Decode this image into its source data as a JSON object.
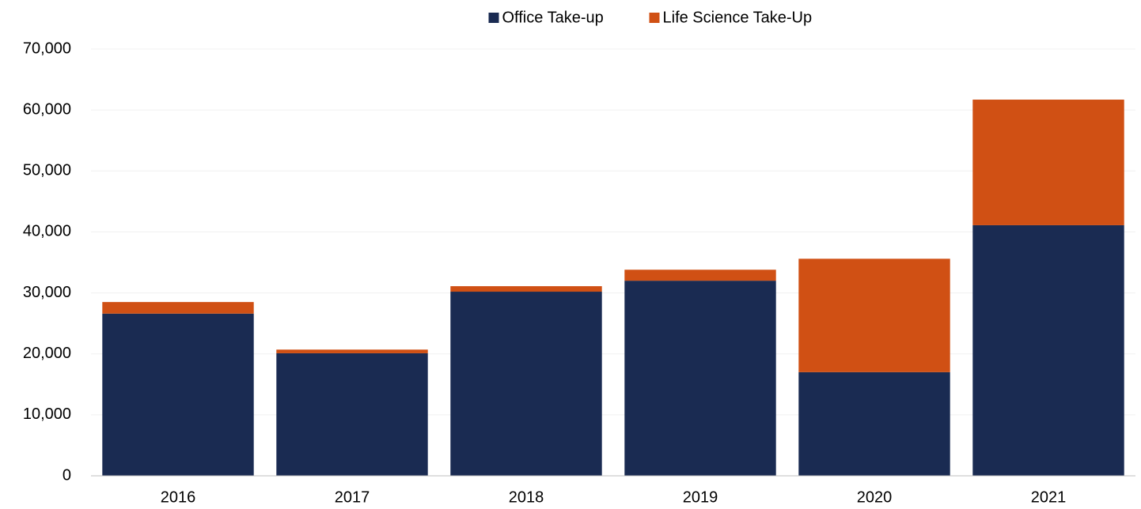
{
  "chart_data": {
    "type": "bar",
    "stacked": true,
    "categories": [
      "2016",
      "2017",
      "2018",
      "2019",
      "2020",
      "2021"
    ],
    "series": [
      {
        "name": "Office Take-up",
        "color": "#1a2b52",
        "values": [
          26600,
          20100,
          30200,
          32000,
          17000,
          41100
        ]
      },
      {
        "name": "Life Science Take-Up",
        "color": "#d05014",
        "values": [
          1900,
          600,
          900,
          1800,
          18600,
          20600
        ]
      }
    ],
    "ylim": [
      0,
      70000
    ],
    "yticks": [
      0,
      {
        "value": 10000,
        "label": "10,000"
      },
      {
        "value": 20000,
        "label": "20,000"
      },
      {
        "value": 30000,
        "label": "30,000"
      },
      {
        "value": 40000,
        "label": "40,000"
      },
      {
        "value": 50000,
        "label": "50,000"
      },
      {
        "value": 60000,
        "label": "60,000"
      },
      {
        "value": 70000,
        "label": "70,000"
      }
    ],
    "grid": true,
    "legend": "top"
  }
}
